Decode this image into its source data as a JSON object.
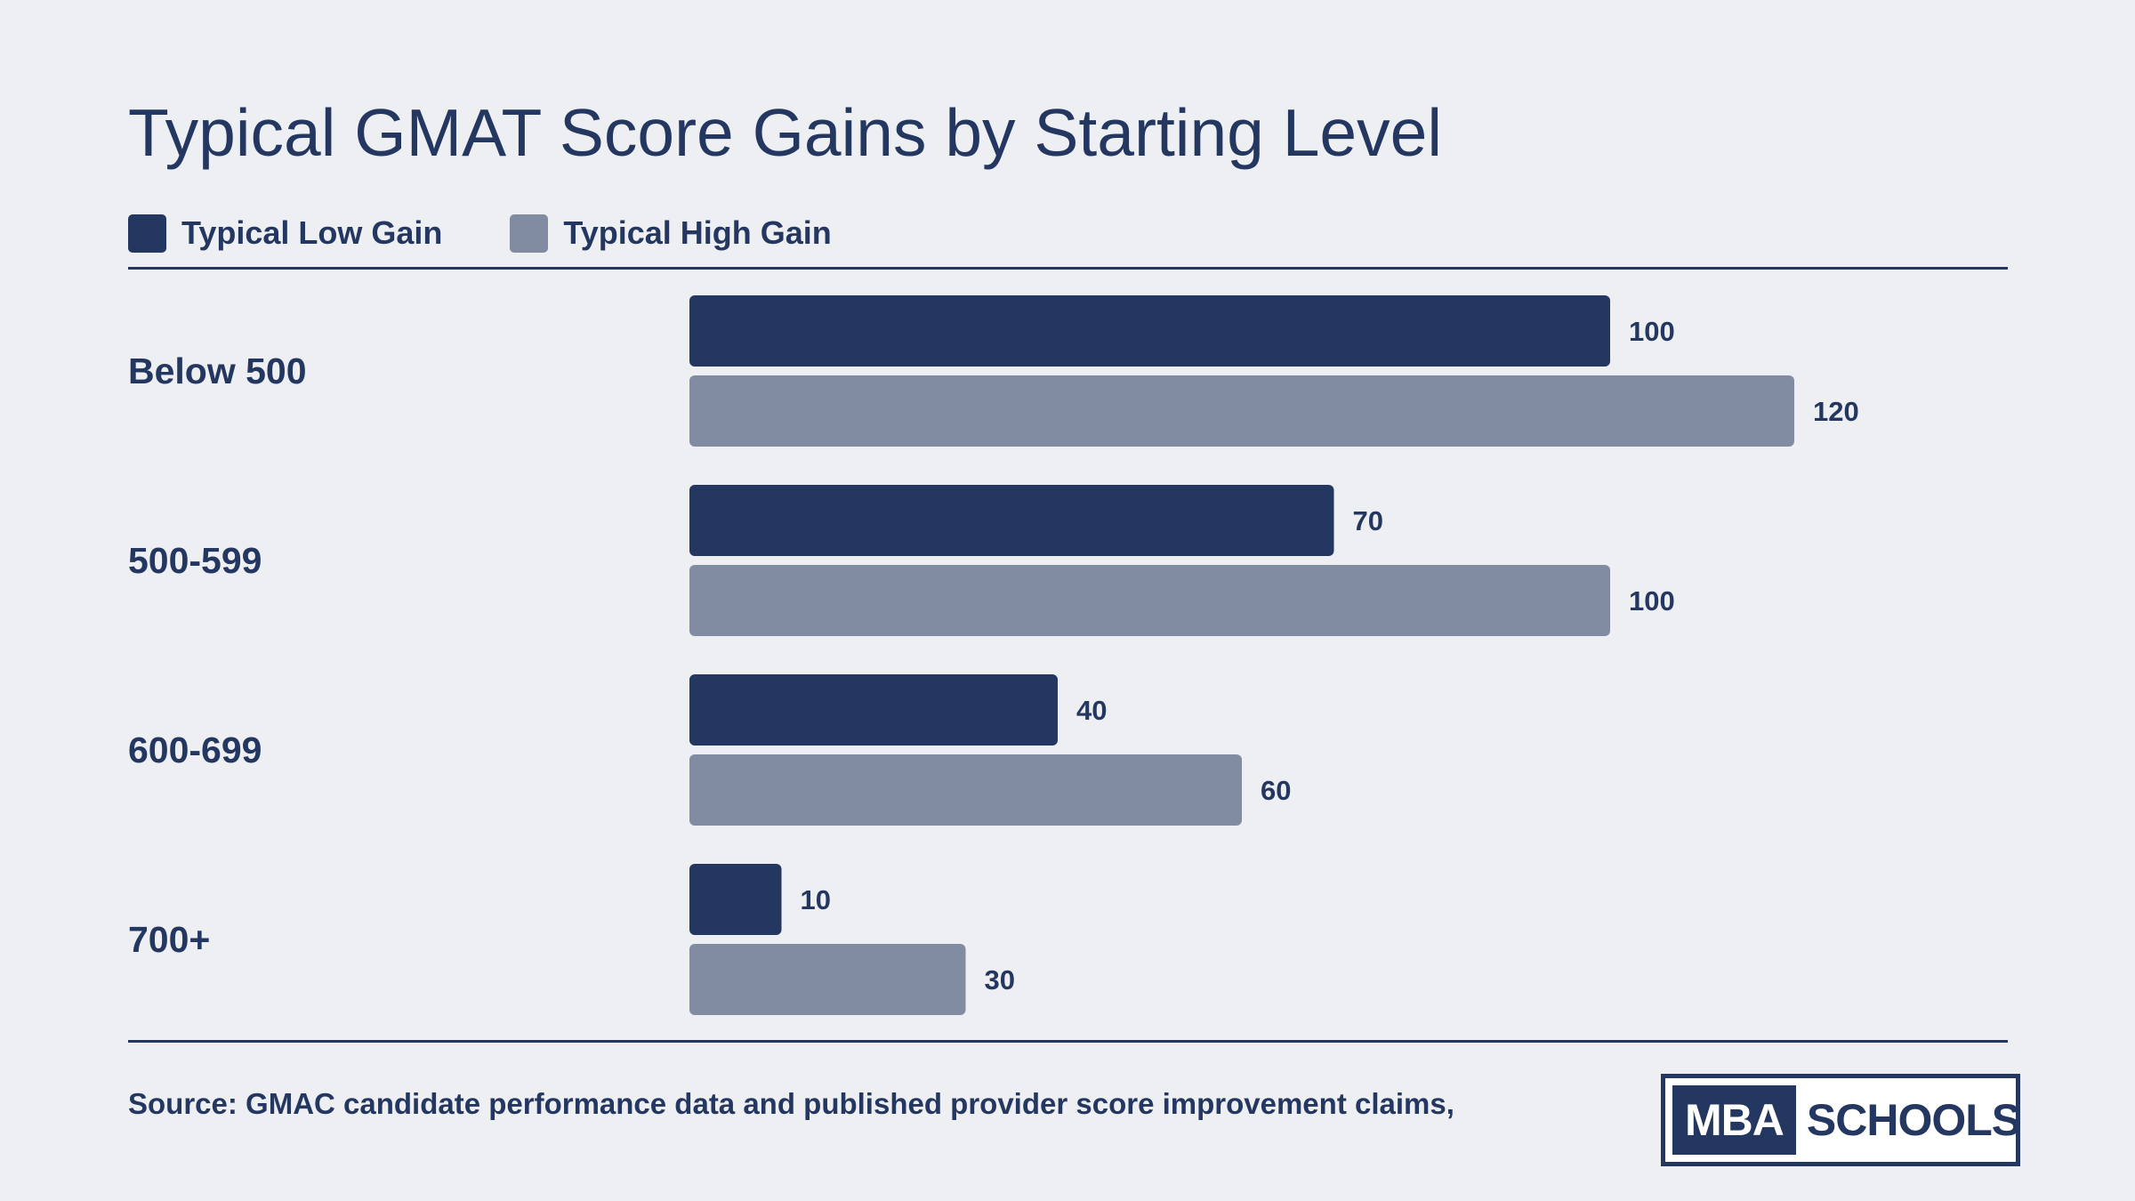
{
  "colors": {
    "background": "#eeeff3",
    "text": "#243760",
    "low_gain": "#243760",
    "high_gain": "#818ca3"
  },
  "legend": [
    {
      "label": "Typical Low Gain",
      "color": "#243760"
    },
    {
      "label": "Typical High Gain",
      "color": "#818ca3"
    }
  ],
  "footer": {
    "source": "Source: GMAC candidate performance data and published provider score improvement claims,",
    "logo_left": "MBA",
    "logo_right": "SCHOOLS"
  },
  "chart_data": {
    "type": "bar",
    "orientation": "horizontal",
    "title": "Typical GMAT Score Gains by Starting Level",
    "xlabel": "",
    "ylabel": "",
    "xlim": [
      0,
      120
    ],
    "grid": false,
    "legend_placement": "top-left",
    "categories": [
      "Below 500",
      "500-599",
      "600-699",
      "700+"
    ],
    "series": [
      {
        "name": "Typical Low Gain",
        "color": "#243760",
        "values": [
          100,
          70,
          40,
          10
        ]
      },
      {
        "name": "Typical High Gain",
        "color": "#818ca3",
        "values": [
          120,
          100,
          60,
          30
        ]
      }
    ]
  }
}
